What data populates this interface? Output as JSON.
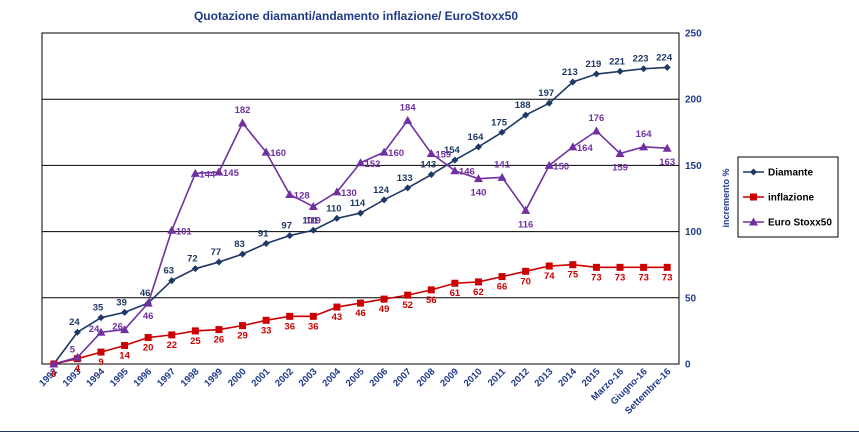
{
  "chart_data": {
    "type": "line",
    "title": "Quotazione  diamanti/andamento  inflazione/  EuroStoxx50",
    "xlabel": "",
    "ylabel": "incremento %",
    "ylim": [
      0,
      250
    ],
    "yticks": [
      "0",
      "50",
      "100",
      "150",
      "200",
      "250"
    ],
    "grid": true,
    "legend_position": "right",
    "categories": [
      "1992",
      "1993",
      "1994",
      "1995",
      "1996",
      "1997",
      "1998",
      "1999",
      "2000",
      "2001",
      "2002",
      "2003",
      "2004",
      "2005",
      "2006",
      "2007",
      "2008",
      "2009",
      "2010",
      "2011",
      "2012",
      "2013",
      "2014",
      "2015",
      "Marzo-16",
      "Giugno-16",
      "Settembre-16"
    ],
    "series": [
      {
        "name": "Diamante",
        "color": "#1f3864",
        "marker": "diamond",
        "values": [
          0,
          24,
          35,
          39,
          46,
          63,
          72,
          77,
          83,
          91,
          97,
          101,
          110,
          114,
          124,
          133,
          143,
          154,
          164,
          175,
          188,
          197,
          213,
          219,
          221,
          223,
          224
        ],
        "labels": [
          "",
          "24",
          "35",
          "39",
          "46",
          "63",
          "72",
          "77",
          "83",
          "91",
          "97",
          "101",
          "110",
          "114",
          "124",
          "133",
          "143",
          "154",
          "164",
          "175",
          "188",
          "197",
          "213",
          "219",
          "221",
          "223",
          "224"
        ]
      },
      {
        "name": "inflazione",
        "color": "#cc0000",
        "marker": "square",
        "values": [
          0,
          4,
          9,
          14,
          20,
          22,
          25,
          26,
          29,
          33,
          36,
          36,
          43,
          46,
          49,
          52,
          56,
          61,
          62,
          66,
          70,
          74,
          75,
          73,
          73,
          73,
          73
        ],
        "labels": [
          "0",
          "4",
          "9",
          "14",
          "20",
          "22",
          "25",
          "26",
          "29",
          "33",
          "36",
          "36",
          "43",
          "46",
          "49",
          "52",
          "56",
          "61",
          "62",
          "66",
          "70",
          "74",
          "75",
          "73",
          "73",
          "73",
          "73"
        ]
      },
      {
        "name": "Euro Stoxx50",
        "color": "#7030a0",
        "marker": "triangle",
        "values": [
          0,
          5,
          24,
          26,
          46,
          101,
          144,
          145,
          182,
          160,
          128,
          119,
          130,
          152,
          160,
          184,
          159,
          146,
          140,
          141,
          116,
          150,
          164,
          176,
          159,
          164,
          163
        ],
        "labels": [
          "",
          "5",
          "24",
          "26",
          "46",
          "101",
          "144",
          "145",
          "182",
          "160",
          "128",
          "119",
          "130",
          "152",
          "160",
          "184",
          "159",
          "146",
          "140",
          "141",
          "116",
          "150",
          "164",
          "176",
          "159",
          "164",
          "163"
        ]
      }
    ]
  }
}
